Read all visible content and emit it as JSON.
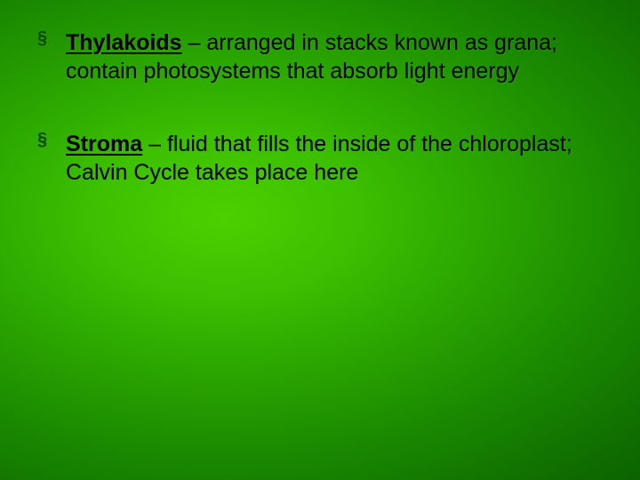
{
  "slide": {
    "background": {
      "type": "radial-gradient",
      "inner_color": "#4dd000",
      "outer_color": "#022e00"
    },
    "text_color": "#000000",
    "bullet_marker_color": "#0a4a00",
    "font_family": "Arial",
    "font_size_pt": 25,
    "bullets": [
      {
        "term": "Thylakoids",
        "separator": " – ",
        "definition": "arranged in stacks known as grana; contain photosystems that absorb light energy"
      },
      {
        "term": "Stroma",
        "separator": " – ",
        "definition": "fluid that fills the inside of the chloroplast; Calvin Cycle takes place here"
      }
    ]
  }
}
